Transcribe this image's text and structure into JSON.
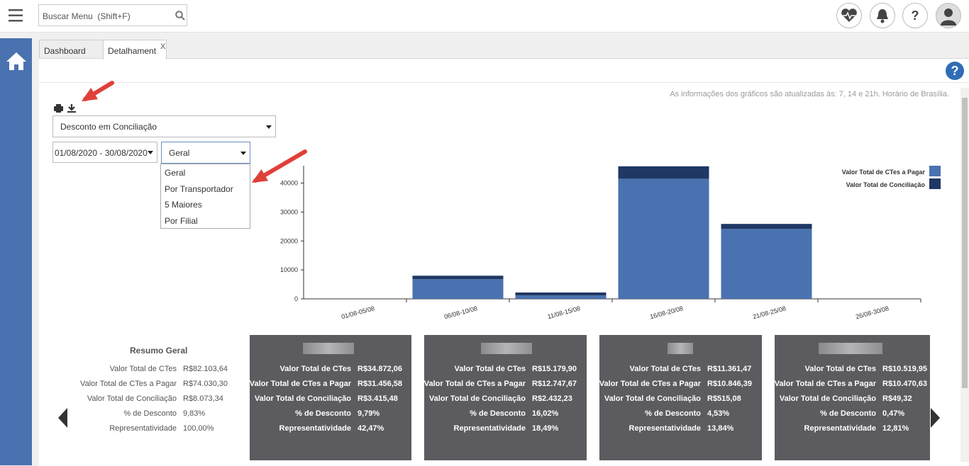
{
  "header": {
    "search_placeholder": "Buscar Menu  (Shift+F)"
  },
  "tabs": [
    "Dashboard",
    "Detalhament"
  ],
  "tab_close": "X",
  "notice": "As informações dos gráficos são atualizadas às: 7, 14 e 21h. Horário de Brasília.",
  "report_select": "Desconto em Conciliação",
  "date_range": "01/08/2020 - 30/08/2020",
  "view_select": {
    "value": "Geral",
    "options": [
      "Geral",
      "Por Transportador",
      "5 Maiores",
      "Por Filial"
    ]
  },
  "chart_data": {
    "type": "stacked-bar",
    "categories": [
      "01/08-05/08",
      "06/08-10/08",
      "11/08-15/08",
      "16/08-20/08",
      "21/08-25/08",
      "26/08-30/08"
    ],
    "series": [
      {
        "name": "Valor Total de CTes a Pagar",
        "color": "#4a72b0",
        "values": [
          0,
          6800,
          1200,
          41500,
          24200,
          0
        ]
      },
      {
        "name": "Valor Total de Conciliação",
        "color": "#1f3864",
        "values": [
          0,
          1200,
          1000,
          4300,
          1700,
          0
        ]
      }
    ],
    "ylim": [
      0,
      46000
    ],
    "yticks": [
      0,
      10000,
      20000,
      30000,
      40000
    ],
    "legend": "top-right"
  },
  "summary": {
    "title": "Resumo Geral",
    "labels": [
      "Valor Total de CTes",
      "Valor Total de CTes a Pagar",
      "Valor Total de Conciliação",
      "% de Desconto",
      "Representatividade"
    ],
    "values": [
      "R$82.103,64",
      "R$74.030,30",
      "R$8.073,34",
      "9,83%",
      "100,00%"
    ]
  },
  "cards": [
    {
      "values": [
        "R$34.872,06",
        "R$31.456,58",
        "R$3.415,48",
        "9,79%",
        "42,47%"
      ]
    },
    {
      "values": [
        "R$15.179,90",
        "R$12.747,67",
        "R$2.432,23",
        "16,02%",
        "18,49%"
      ]
    },
    {
      "values": [
        "R$11.361,47",
        "R$10.846,39",
        "R$515,08",
        "4,53%",
        "13,84%"
      ]
    },
    {
      "values": [
        "R$10.519,95",
        "R$10.470,63",
        "R$49,32",
        "0,47%",
        "12,81%"
      ]
    }
  ]
}
